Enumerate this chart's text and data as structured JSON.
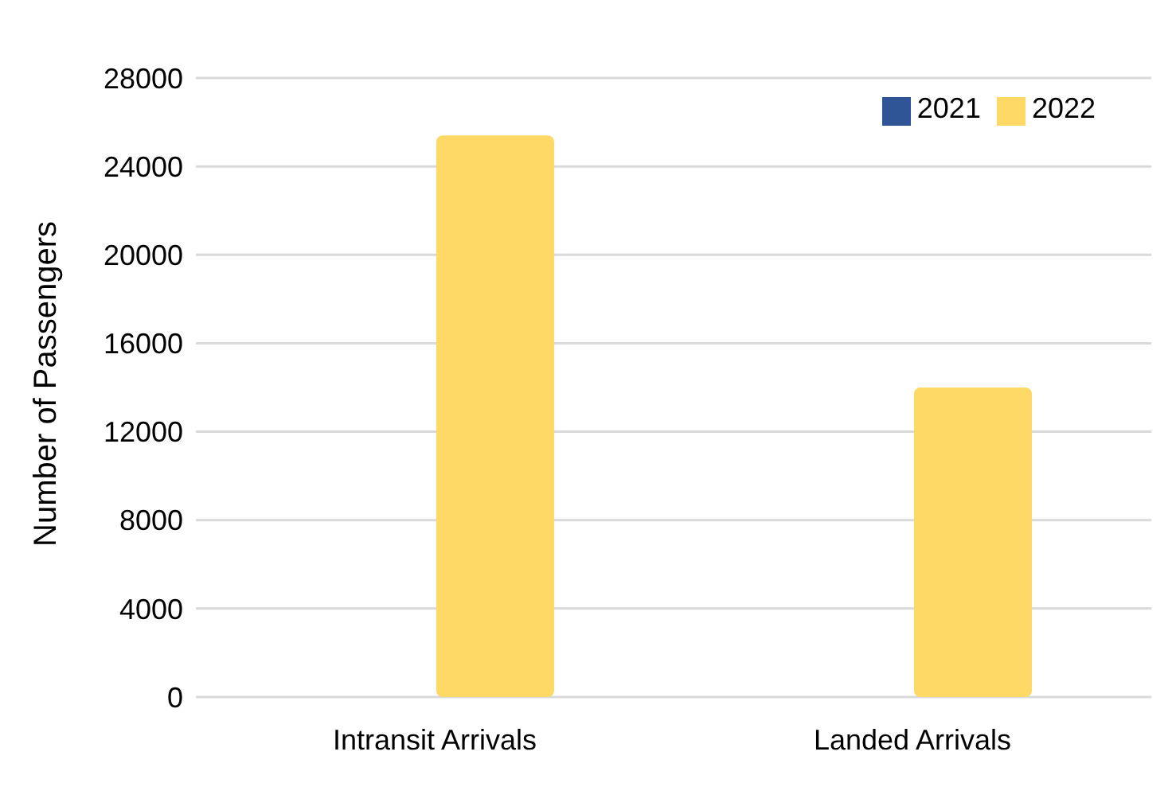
{
  "chart_data": {
    "type": "bar",
    "ylabel": "Number of Passengers",
    "categories": [
      "Intransit Arrivals",
      "Landed Arrivals"
    ],
    "series": [
      {
        "name": "2021",
        "color": "#2f5597",
        "values": [
          0,
          0
        ]
      },
      {
        "name": "2022",
        "color": "#ffd966",
        "values": [
          25400,
          14000
        ]
      }
    ],
    "ylim": [
      0,
      28000
    ],
    "yticks": [
      0,
      4000,
      8000,
      12000,
      16000,
      20000,
      24000,
      28000
    ],
    "grid": "y",
    "legend": "top right"
  }
}
